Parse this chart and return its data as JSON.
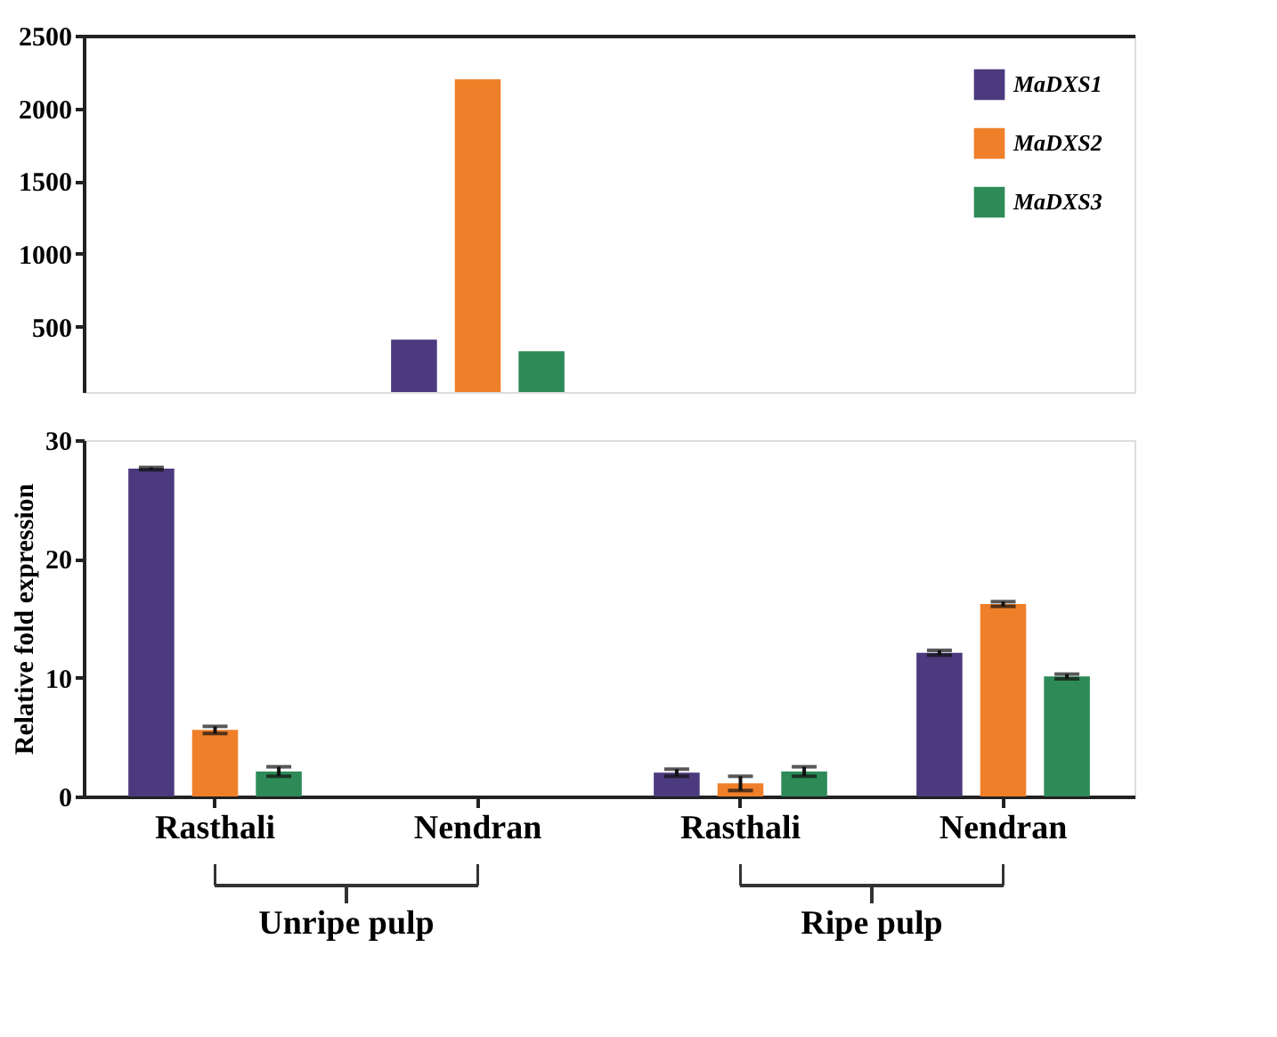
{
  "chart_data": [
    {
      "type": "bar",
      "categories": [
        null,
        null,
        null,
        null
      ],
      "ylim": [
        50,
        2500
      ],
      "yticks": [
        500,
        1000,
        1500,
        2000,
        2500
      ],
      "tick_labels": "y",
      "legend": "top right",
      "grid": false,
      "series": [
        {
          "name": "MaDXS1",
          "color": "#4b3a7e",
          "values": [
            null,
            410,
            null,
            null
          ]
        },
        {
          "name": "MaDXS2",
          "color": "#f07f2a",
          "values": [
            null,
            2200,
            null,
            null
          ]
        },
        {
          "name": "MaDXS3",
          "color": "#2e8b57",
          "values": [
            null,
            330,
            null,
            null
          ]
        }
      ]
    },
    {
      "type": "bar",
      "categories": [
        "Rasthali",
        "Nendran",
        "Rasthali",
        "Nendran"
      ],
      "ylim": [
        0,
        30
      ],
      "yticks": [
        0,
        10,
        20,
        30
      ],
      "ylabel": "Relative fold expression",
      "grid": false,
      "legend": false,
      "annotations": [
        "Unripe pulp",
        "Ripe pulp"
      ],
      "series": [
        {
          "color": "#4b3a7e",
          "values": [
            27.6,
            null,
            2.0,
            12.1
          ],
          "errors": [
            0.1,
            null,
            0.3,
            0.2
          ]
        },
        {
          "color": "#f07f2a",
          "values": [
            5.6,
            null,
            1.1,
            16.2
          ],
          "errors": [
            0.3,
            null,
            0.6,
            0.2
          ]
        },
        {
          "color": "#2e8b57",
          "values": [
            2.1,
            null,
            2.1,
            10.1
          ],
          "errors": [
            0.4,
            null,
            0.4,
            0.2
          ]
        }
      ]
    }
  ]
}
